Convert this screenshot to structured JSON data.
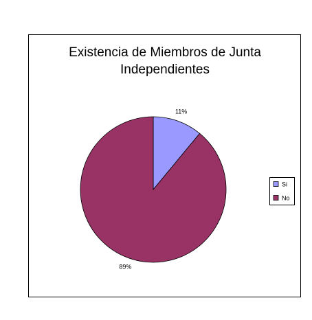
{
  "chart_data": {
    "type": "pie",
    "title": "Existencia de Miembros de Junta Independientes",
    "categories": [
      "Si",
      "No"
    ],
    "values": [
      11,
      89
    ],
    "value_labels": [
      "11%",
      "89%"
    ],
    "colors": [
      "#9999ff",
      "#993366"
    ],
    "legend": "right"
  }
}
